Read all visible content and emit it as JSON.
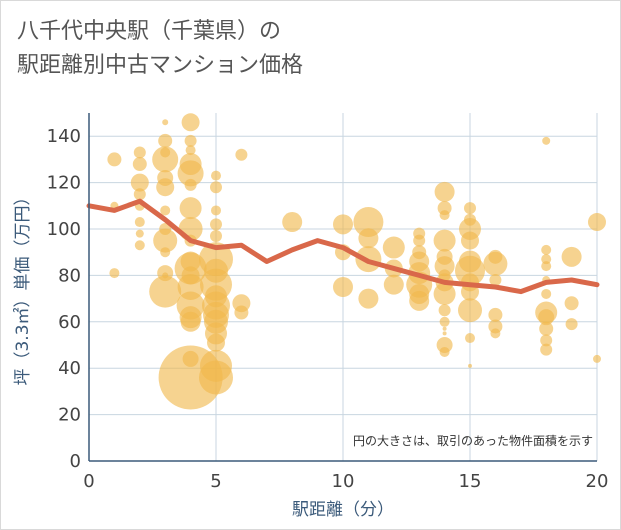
{
  "title_line1": "八千代中央駅（千葉県）の",
  "title_line2": "駅距離別中古マンション価格",
  "note": "円の大きさは、取引のあった物件面積を示す",
  "colors": {
    "bubble": "#f0b84c",
    "line": "#d9684a",
    "grid": "#c8d6e0",
    "axis": "#3b5a7a"
  },
  "chart_data": {
    "type": "scatter",
    "xlabel": "駅距離（分）",
    "ylabel": "坪（3.3㎡）単価（万円）",
    "xlim": [
      0,
      20
    ],
    "ylim": [
      0,
      150
    ],
    "xticks": [
      "0",
      "5",
      "10",
      "15",
      "20"
    ],
    "yticks": [
      "0",
      "20",
      "40",
      "60",
      "80",
      "100",
      "120",
      "140"
    ],
    "grid": true,
    "points": [
      {
        "x": 1,
        "y": 130,
        "s": 7
      },
      {
        "x": 1,
        "y": 110,
        "s": 4
      },
      {
        "x": 1,
        "y": 81,
        "s": 5
      },
      {
        "x": 2,
        "y": 133,
        "s": 6
      },
      {
        "x": 2,
        "y": 128,
        "s": 7
      },
      {
        "x": 2,
        "y": 120,
        "s": 9
      },
      {
        "x": 2,
        "y": 115,
        "s": 6
      },
      {
        "x": 2,
        "y": 110,
        "s": 5
      },
      {
        "x": 2,
        "y": 103,
        "s": 5
      },
      {
        "x": 2,
        "y": 98,
        "s": 4
      },
      {
        "x": 2,
        "y": 93,
        "s": 5
      },
      {
        "x": 3,
        "y": 146,
        "s": 3
      },
      {
        "x": 3,
        "y": 138,
        "s": 7
      },
      {
        "x": 3,
        "y": 133,
        "s": 5
      },
      {
        "x": 3,
        "y": 130,
        "s": 13
      },
      {
        "x": 3,
        "y": 122,
        "s": 8
      },
      {
        "x": 3,
        "y": 118,
        "s": 9
      },
      {
        "x": 3,
        "y": 108,
        "s": 5
      },
      {
        "x": 3,
        "y": 100,
        "s": 6
      },
      {
        "x": 3,
        "y": 95,
        "s": 12
      },
      {
        "x": 3,
        "y": 90,
        "s": 5
      },
      {
        "x": 3,
        "y": 81,
        "s": 8
      },
      {
        "x": 3,
        "y": 80,
        "s": 3
      },
      {
        "x": 3,
        "y": 73,
        "s": 16
      },
      {
        "x": 4,
        "y": 146,
        "s": 9
      },
      {
        "x": 4,
        "y": 138,
        "s": 6
      },
      {
        "x": 4,
        "y": 134,
        "s": 5
      },
      {
        "x": 4,
        "y": 128,
        "s": 11
      },
      {
        "x": 4,
        "y": 124,
        "s": 13
      },
      {
        "x": 4,
        "y": 119,
        "s": 6
      },
      {
        "x": 4,
        "y": 109,
        "s": 11
      },
      {
        "x": 4,
        "y": 100,
        "s": 12
      },
      {
        "x": 4,
        "y": 95,
        "s": 6
      },
      {
        "x": 4,
        "y": 86,
        "s": 10
      },
      {
        "x": 4,
        "y": 83,
        "s": 16
      },
      {
        "x": 4,
        "y": 80,
        "s": 9
      },
      {
        "x": 4,
        "y": 75,
        "s": 13
      },
      {
        "x": 4,
        "y": 67,
        "s": 14
      },
      {
        "x": 4,
        "y": 62,
        "s": 11
      },
      {
        "x": 4,
        "y": 60,
        "s": 10
      },
      {
        "x": 4,
        "y": 44,
        "s": 8
      },
      {
        "x": 4,
        "y": 36,
        "s": 32
      },
      {
        "x": 5,
        "y": 123,
        "s": 5
      },
      {
        "x": 5,
        "y": 118,
        "s": 6
      },
      {
        "x": 5,
        "y": 108,
        "s": 5
      },
      {
        "x": 5,
        "y": 102,
        "s": 6
      },
      {
        "x": 5,
        "y": 97,
        "s": 6
      },
      {
        "x": 5,
        "y": 87,
        "s": 17
      },
      {
        "x": 5,
        "y": 82,
        "s": 12
      },
      {
        "x": 5,
        "y": 76,
        "s": 16
      },
      {
        "x": 5,
        "y": 71,
        "s": 11
      },
      {
        "x": 5,
        "y": 67,
        "s": 14
      },
      {
        "x": 5,
        "y": 63,
        "s": 13
      },
      {
        "x": 5,
        "y": 60,
        "s": 12
      },
      {
        "x": 5,
        "y": 55,
        "s": 11
      },
      {
        "x": 5,
        "y": 51,
        "s": 9
      },
      {
        "x": 5,
        "y": 41,
        "s": 16
      },
      {
        "x": 5,
        "y": 36,
        "s": 17
      },
      {
        "x": 6,
        "y": 132,
        "s": 6
      },
      {
        "x": 6,
        "y": 68,
        "s": 9
      },
      {
        "x": 6,
        "y": 64,
        "s": 7
      },
      {
        "x": 8,
        "y": 103,
        "s": 10
      },
      {
        "x": 10,
        "y": 102,
        "s": 10
      },
      {
        "x": 10,
        "y": 90,
        "s": 8
      },
      {
        "x": 10,
        "y": 75,
        "s": 10
      },
      {
        "x": 11,
        "y": 103,
        "s": 15
      },
      {
        "x": 11,
        "y": 96,
        "s": 10
      },
      {
        "x": 11,
        "y": 87,
        "s": 13
      },
      {
        "x": 11,
        "y": 70,
        "s": 10
      },
      {
        "x": 12,
        "y": 92,
        "s": 11
      },
      {
        "x": 12,
        "y": 83,
        "s": 9
      },
      {
        "x": 12,
        "y": 76,
        "s": 10
      },
      {
        "x": 13,
        "y": 98,
        "s": 6
      },
      {
        "x": 13,
        "y": 95,
        "s": 6
      },
      {
        "x": 13,
        "y": 90,
        "s": 7
      },
      {
        "x": 13,
        "y": 86,
        "s": 10
      },
      {
        "x": 13,
        "y": 81,
        "s": 11
      },
      {
        "x": 13,
        "y": 76,
        "s": 13
      },
      {
        "x": 13,
        "y": 72,
        "s": 10
      },
      {
        "x": 13,
        "y": 69,
        "s": 10
      },
      {
        "x": 14,
        "y": 116,
        "s": 10
      },
      {
        "x": 14,
        "y": 109,
        "s": 7
      },
      {
        "x": 14,
        "y": 106,
        "s": 5
      },
      {
        "x": 14,
        "y": 95,
        "s": 11
      },
      {
        "x": 14,
        "y": 88,
        "s": 8
      },
      {
        "x": 14,
        "y": 84,
        "s": 10
      },
      {
        "x": 14,
        "y": 80,
        "s": 6
      },
      {
        "x": 14,
        "y": 77,
        "s": 9
      },
      {
        "x": 14,
        "y": 72,
        "s": 11
      },
      {
        "x": 14,
        "y": 65,
        "s": 6
      },
      {
        "x": 14,
        "y": 60,
        "s": 5
      },
      {
        "x": 14,
        "y": 57,
        "s": 2
      },
      {
        "x": 14,
        "y": 55,
        "s": 2
      },
      {
        "x": 14,
        "y": 50,
        "s": 8
      },
      {
        "x": 14,
        "y": 47,
        "s": 5
      },
      {
        "x": 15,
        "y": 109,
        "s": 6
      },
      {
        "x": 15,
        "y": 104,
        "s": 6
      },
      {
        "x": 15,
        "y": 100,
        "s": 11
      },
      {
        "x": 15,
        "y": 95,
        "s": 9
      },
      {
        "x": 15,
        "y": 86,
        "s": 11
      },
      {
        "x": 15,
        "y": 82,
        "s": 15
      },
      {
        "x": 15,
        "y": 77,
        "s": 9
      },
      {
        "x": 15,
        "y": 73,
        "s": 9
      },
      {
        "x": 15,
        "y": 65,
        "s": 12
      },
      {
        "x": 15,
        "y": 53,
        "s": 5
      },
      {
        "x": 15,
        "y": 41,
        "s": 2
      },
      {
        "x": 16,
        "y": 88,
        "s": 7
      },
      {
        "x": 16,
        "y": 85,
        "s": 12
      },
      {
        "x": 16,
        "y": 78,
        "s": 6
      },
      {
        "x": 16,
        "y": 63,
        "s": 7
      },
      {
        "x": 16,
        "y": 58,
        "s": 7
      },
      {
        "x": 16,
        "y": 55,
        "s": 5
      },
      {
        "x": 18,
        "y": 138,
        "s": 4
      },
      {
        "x": 18,
        "y": 91,
        "s": 5
      },
      {
        "x": 18,
        "y": 87,
        "s": 5
      },
      {
        "x": 18,
        "y": 84,
        "s": 5
      },
      {
        "x": 18,
        "y": 78,
        "s": 4
      },
      {
        "x": 18,
        "y": 72,
        "s": 5
      },
      {
        "x": 18,
        "y": 64,
        "s": 11
      },
      {
        "x": 18,
        "y": 62,
        "s": 8
      },
      {
        "x": 18,
        "y": 57,
        "s": 7
      },
      {
        "x": 18,
        "y": 52,
        "s": 6
      },
      {
        "x": 18,
        "y": 48,
        "s": 6
      },
      {
        "x": 19,
        "y": 88,
        "s": 10
      },
      {
        "x": 19,
        "y": 68,
        "s": 7
      },
      {
        "x": 19,
        "y": 59,
        "s": 6
      },
      {
        "x": 20,
        "y": 103,
        "s": 9
      },
      {
        "x": 20,
        "y": 44,
        "s": 4
      }
    ],
    "trend": [
      {
        "x": 0,
        "y": 110
      },
      {
        "x": 1,
        "y": 108
      },
      {
        "x": 2,
        "y": 112
      },
      {
        "x": 3,
        "y": 104
      },
      {
        "x": 4,
        "y": 95
      },
      {
        "x": 5,
        "y": 92
      },
      {
        "x": 6,
        "y": 93
      },
      {
        "x": 7,
        "y": 86
      },
      {
        "x": 8,
        "y": 91
      },
      {
        "x": 9,
        "y": 95
      },
      {
        "x": 10,
        "y": 92
      },
      {
        "x": 11,
        "y": 86
      },
      {
        "x": 12,
        "y": 83
      },
      {
        "x": 13,
        "y": 80
      },
      {
        "x": 14,
        "y": 77
      },
      {
        "x": 15,
        "y": 76
      },
      {
        "x": 16,
        "y": 75
      },
      {
        "x": 17,
        "y": 73
      },
      {
        "x": 18,
        "y": 77
      },
      {
        "x": 19,
        "y": 78
      },
      {
        "x": 20,
        "y": 76
      }
    ]
  }
}
